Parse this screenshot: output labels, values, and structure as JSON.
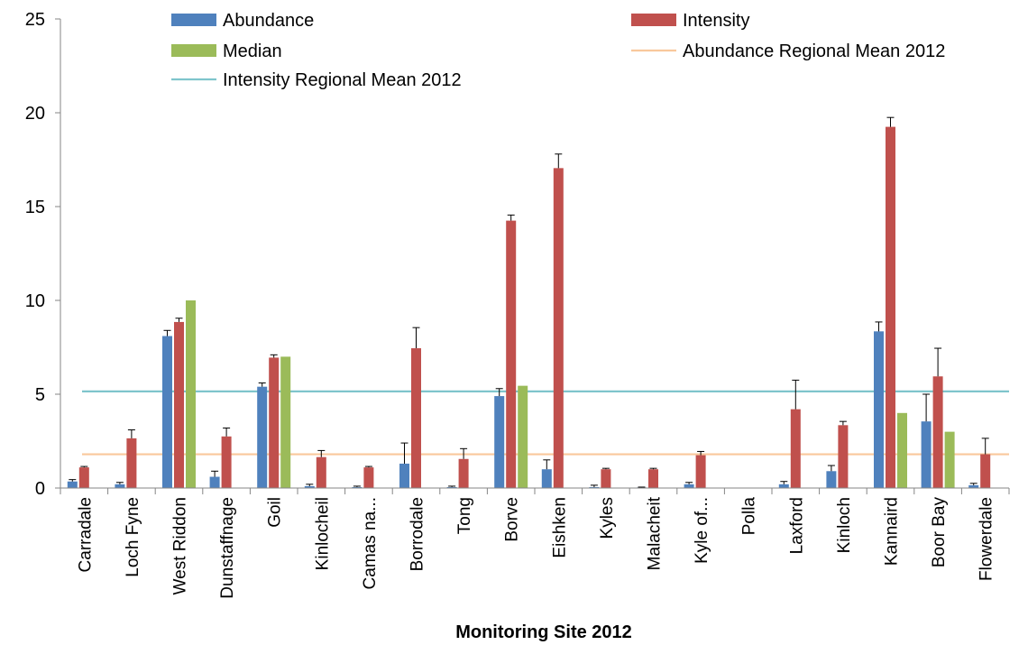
{
  "chart_data": {
    "type": "bar",
    "title": "",
    "xlabel": "Monitoring Site 2012",
    "ylabel": "",
    "ylim": [
      0,
      25
    ],
    "yticks": [
      0,
      5,
      10,
      15,
      20,
      25
    ],
    "grid": false,
    "legend_position": "top",
    "categories": [
      "Carradale",
      "Loch Fyne",
      "West Riddon",
      "Dunstaffnage",
      "Goil",
      "Kinlocheil",
      "Camas na...",
      "Borrodale",
      "Tong",
      "Borve",
      "Eishken",
      "Kyles",
      "Malacheit",
      "Kyle of...",
      "Polla",
      "Laxford",
      "Kinloch",
      "Kannaird",
      "Boor Bay",
      "Flowerdale"
    ],
    "series": [
      {
        "name": "Abundance",
        "color": "#4F81BD",
        "values": [
          0.35,
          0.2,
          8.1,
          0.6,
          5.4,
          0.1,
          0.05,
          1.3,
          0.05,
          4.9,
          1.0,
          0.05,
          0.03,
          0.2,
          0.0,
          0.2,
          0.9,
          8.35,
          3.55,
          0.15
        ],
        "error": [
          0.1,
          0.1,
          0.3,
          0.3,
          0.2,
          0.1,
          0.05,
          1.1,
          0.05,
          0.4,
          0.5,
          0.1,
          0.02,
          0.1,
          0.0,
          0.15,
          0.3,
          0.5,
          1.45,
          0.1
        ]
      },
      {
        "name": "Intensity",
        "color": "#C0504D",
        "values": [
          1.1,
          2.65,
          8.85,
          2.75,
          6.95,
          1.65,
          1.1,
          7.45,
          1.55,
          14.25,
          17.05,
          1.0,
          1.0,
          1.75,
          0.0,
          4.2,
          3.35,
          19.25,
          5.95,
          1.8
        ],
        "error": [
          0.05,
          0.45,
          0.2,
          0.45,
          0.15,
          0.35,
          0.05,
          1.1,
          0.55,
          0.3,
          0.75,
          0.05,
          0.05,
          0.2,
          0.0,
          1.55,
          0.2,
          0.5,
          1.5,
          0.85
        ]
      },
      {
        "name": "Median",
        "color": "#9BBB59",
        "values": [
          0,
          0,
          10.0,
          0,
          7.0,
          0,
          0,
          0,
          0,
          5.45,
          0,
          0,
          0,
          0,
          0,
          0,
          0,
          4.0,
          3.0,
          0
        ],
        "error": null
      }
    ],
    "reference_lines": [
      {
        "name": "Abundance Regional Mean 2012",
        "color": "#F9C89C",
        "value": 1.8
      },
      {
        "name": "Intensity  Regional Mean 2012",
        "color": "#7FC5CC",
        "value": 5.15
      }
    ]
  }
}
